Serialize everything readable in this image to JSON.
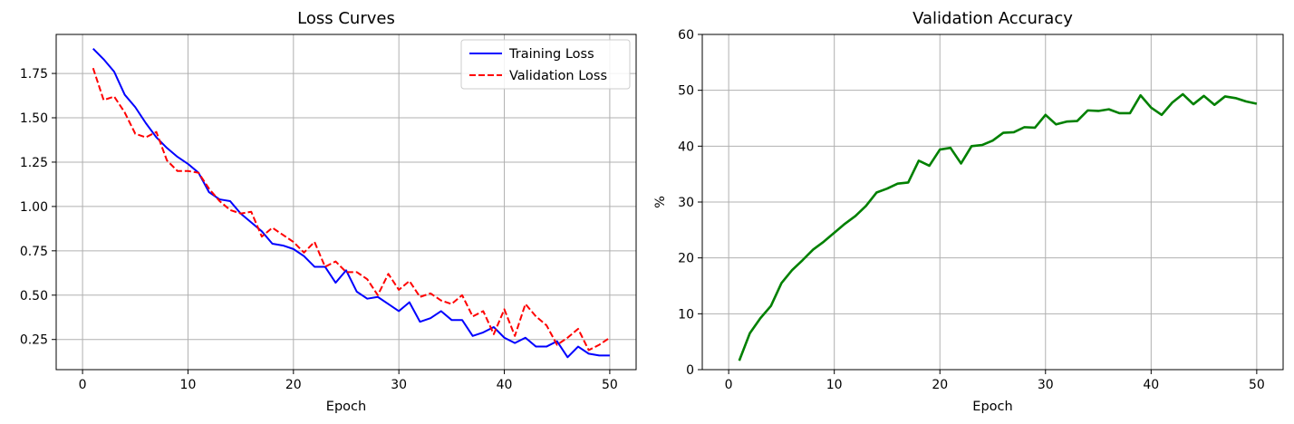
{
  "chart_data": [
    {
      "type": "line",
      "title": "Loss Curves",
      "xlabel": "Epoch",
      "ylabel": "",
      "xlim": [
        -2.5,
        52.5
      ],
      "ylim": [
        0.08,
        1.97
      ],
      "xticks": [
        0,
        10,
        20,
        30,
        40,
        50
      ],
      "yticks": [
        0.25,
        0.5,
        0.75,
        1.0,
        1.25,
        1.5,
        1.75
      ],
      "ytick_labels": [
        "0.25",
        "0.50",
        "0.75",
        "1.00",
        "1.25",
        "1.50",
        "1.75"
      ],
      "grid": true,
      "legend": "top-right",
      "x": [
        1,
        2,
        3,
        4,
        5,
        6,
        7,
        8,
        9,
        10,
        11,
        12,
        13,
        14,
        15,
        16,
        17,
        18,
        19,
        20,
        21,
        22,
        23,
        24,
        25,
        26,
        27,
        28,
        29,
        30,
        31,
        32,
        33,
        34,
        35,
        36,
        37,
        38,
        39,
        40,
        41,
        42,
        43,
        44,
        45,
        46,
        47,
        48,
        49,
        50
      ],
      "series": [
        {
          "name": "Training Loss",
          "color": "#0000ff",
          "style": "solid",
          "values": [
            1.89,
            1.83,
            1.76,
            1.63,
            1.56,
            1.47,
            1.39,
            1.33,
            1.28,
            1.24,
            1.19,
            1.08,
            1.04,
            1.03,
            0.96,
            0.91,
            0.86,
            0.79,
            0.78,
            0.76,
            0.72,
            0.66,
            0.66,
            0.57,
            0.64,
            0.52,
            0.48,
            0.49,
            0.45,
            0.41,
            0.46,
            0.35,
            0.37,
            0.41,
            0.36,
            0.36,
            0.27,
            0.29,
            0.32,
            0.26,
            0.23,
            0.26,
            0.21,
            0.21,
            0.24,
            0.15,
            0.21,
            0.17,
            0.16,
            0.16
          ]
        },
        {
          "name": "Validation Loss",
          "color": "#ff0000",
          "style": "dashed",
          "values": [
            1.78,
            1.6,
            1.62,
            1.53,
            1.41,
            1.39,
            1.42,
            1.26,
            1.2,
            1.2,
            1.19,
            1.1,
            1.03,
            0.98,
            0.96,
            0.97,
            0.83,
            0.88,
            0.84,
            0.8,
            0.74,
            0.8,
            0.66,
            0.69,
            0.63,
            0.63,
            0.59,
            0.5,
            0.62,
            0.53,
            0.58,
            0.49,
            0.51,
            0.47,
            0.45,
            0.5,
            0.38,
            0.41,
            0.28,
            0.42,
            0.27,
            0.45,
            0.38,
            0.33,
            0.22,
            0.26,
            0.31,
            0.19,
            0.22,
            0.26
          ]
        }
      ]
    },
    {
      "type": "line",
      "title": "Validation Accuracy",
      "xlabel": "Epoch",
      "ylabel": "%",
      "xlim": [
        -2.5,
        52.5
      ],
      "ylim": [
        0,
        60
      ],
      "xticks": [
        0,
        10,
        20,
        30,
        40,
        50
      ],
      "yticks": [
        0,
        10,
        20,
        30,
        40,
        50,
        60
      ],
      "ytick_labels": [
        "0",
        "10",
        "20",
        "30",
        "40",
        "50",
        "60"
      ],
      "grid": true,
      "x": [
        1,
        2,
        3,
        4,
        5,
        6,
        7,
        8,
        9,
        10,
        11,
        12,
        13,
        14,
        15,
        16,
        17,
        18,
        19,
        20,
        21,
        22,
        23,
        24,
        25,
        26,
        27,
        28,
        29,
        30,
        31,
        32,
        33,
        34,
        35,
        36,
        37,
        38,
        39,
        40,
        41,
        42,
        43,
        44,
        45,
        46,
        47,
        48,
        49,
        50
      ],
      "series": [
        {
          "color": "#008000",
          "style": "solid",
          "values": [
            1.6,
            6.5,
            9.2,
            11.4,
            15.5,
            17.8,
            19.6,
            21.5,
            22.9,
            24.5,
            26.1,
            27.5,
            29.3,
            31.7,
            32.4,
            33.3,
            33.5,
            37.4,
            36.5,
            39.4,
            39.7,
            36.9,
            40.0,
            40.2,
            41.0,
            42.4,
            42.5,
            43.4,
            43.3,
            45.6,
            43.9,
            44.4,
            44.5,
            46.4,
            46.3,
            46.6,
            45.9,
            45.9,
            49.1,
            46.9,
            45.6,
            47.8,
            49.3,
            47.5,
            49.0,
            47.4,
            48.9,
            48.6,
            48.0,
            47.6
          ]
        }
      ]
    }
  ]
}
